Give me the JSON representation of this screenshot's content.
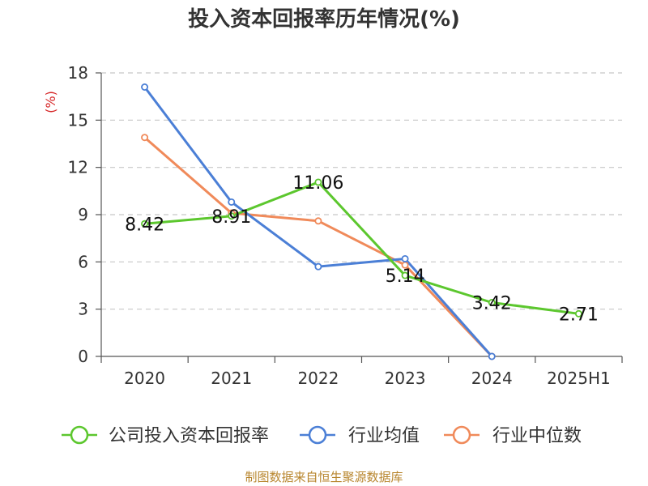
{
  "title": "投入资本回报率历年情况(%)",
  "source": "制图数据来自恒生聚源数据库",
  "chart_data": {
    "type": "line",
    "categories": [
      "2020",
      "2021",
      "2022",
      "2023",
      "2024",
      "2025H1"
    ],
    "ylabel": "(%)",
    "ylim": [
      0,
      18
    ],
    "yticks": [
      0,
      3,
      6,
      9,
      12,
      15,
      18
    ],
    "grid": true,
    "legend_position": "bottom",
    "series": [
      {
        "name": "公司投入资本回报率",
        "color": "#5cc72e",
        "values": [
          8.42,
          8.91,
          11.06,
          5.14,
          3.42,
          2.71
        ],
        "labels": [
          "8.42",
          "8.91",
          "11.06",
          "5.14",
          "3.42",
          "2.71"
        ]
      },
      {
        "name": "行业均值",
        "color": "#4b7fd6",
        "values": [
          17.1,
          9.8,
          5.7,
          6.2,
          0.0,
          null
        ]
      },
      {
        "name": "行业中位数",
        "color": "#f08a5a",
        "values": [
          13.9,
          9.1,
          8.6,
          5.8,
          0.0,
          null
        ]
      }
    ]
  }
}
